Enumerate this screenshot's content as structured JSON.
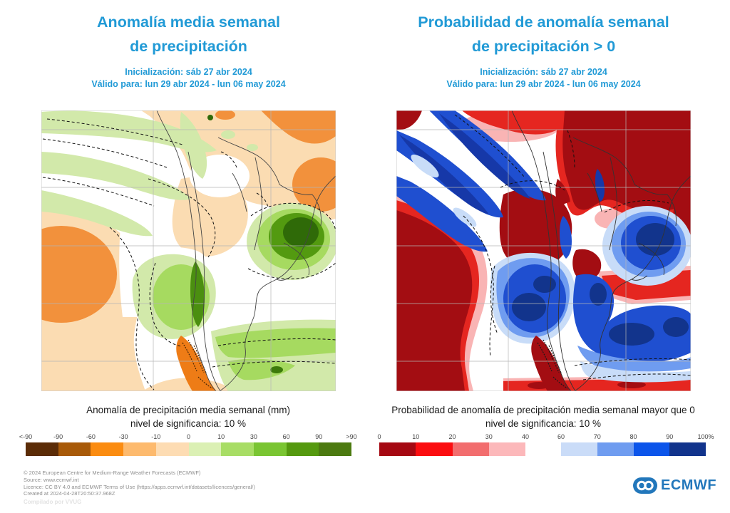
{
  "accent_blue": "#219ad6",
  "logo_blue": "#2277bb",
  "panels": [
    {
      "title_line1": "Anomalía media semanal",
      "title_line2": "de precipitación",
      "init_line": "Inicialización: sáb 27 abr 2024",
      "valid_line": "Válido para: lun 29 abr 2024 - lun 06 may 2024",
      "caption_line1": "Anomalía de precipitación media semanal (mm)",
      "caption_line2": "nivel de significancia: 10 %",
      "colorbars": [
        {
          "labels": [
            "<-90",
            "-90",
            "-60",
            "-30",
            "-10",
            "0",
            "10",
            "30",
            "60",
            "90",
            ">90"
          ],
          "colors": [
            "#5b2c07",
            "#a85a09",
            "#fb8c11",
            "#fdba6e",
            "#fddcb3",
            "#dbf0b4",
            "#a8dd65",
            "#7ac532",
            "#55990f",
            "#4c7a10"
          ]
        }
      ]
    },
    {
      "title_line1": "Probabilidad de anomalía semanal",
      "title_line2": "de precipitación > 0",
      "init_line": "Inicialización: sáb 27 abr 2024",
      "valid_line": "Válido para: lun 29 abr 2024 - lun 06 may 2024",
      "caption_line1": "Probabilidad de anomalía de precipitación media semanal mayor que 0",
      "caption_line2": "nivel de significancia: 10 %",
      "colorbars": [
        {
          "labels": [
            "0",
            "10",
            "20",
            "30",
            "40"
          ],
          "colors": [
            "#a50812",
            "#fb0d10",
            "#f26d6e",
            "#fcb8ba"
          ]
        },
        {
          "labels": [
            "60",
            "70",
            "80",
            "90",
            "100%"
          ],
          "colors": [
            "#cadcf8",
            "#6f9cf0",
            "#0c55ea",
            "#12348c"
          ]
        }
      ]
    }
  ],
  "footer": {
    "lines": [
      "© 2024 European Centre for Medium-Range Weather Forecasts (ECMWF)",
      "Source: www.ecmwf.int",
      "Licence: CC BY 4.0 and ECMWF Terms of Use (https://apps.ecmwf.int/datasets/licences/general/)",
      "Created at 2024-04-28T20:50:37.968Z"
    ],
    "watermark": "Compilado por VVUG"
  },
  "logo": {
    "text": "ECMWF"
  },
  "chart_data": [
    {
      "type": "heatmap",
      "title": "Anomalía media semanal de precipitación",
      "subtitle": [
        "Inicialización: sáb 27 abr 2024",
        "Válido para: lun 29 abr 2024 - lun 06 may 2024"
      ],
      "region": "southern South America with adjacent Pacific and Atlantic",
      "legend_label": "Anomalía de precipitación media semanal (mm)",
      "significance": "nivel de significancia: 10 %",
      "scale_ticks": [
        "<-90",
        "-90",
        "-60",
        "-30",
        "-10",
        "0",
        "10",
        "30",
        "60",
        "90",
        ">90"
      ],
      "scale_colors": [
        "#5b2c07",
        "#a85a09",
        "#fb8c11",
        "#fdba6e",
        "#fddcb3",
        "#dbf0b4",
        "#a8dd65",
        "#7ac532",
        "#55990f",
        "#4c7a10"
      ],
      "grid": true,
      "visual_features": [
        "dark green positive anomaly maximum over Uruguay / southern Brazil",
        "green positive band along central Chile and southern Argentina / Patagonia east",
        "orange negative anomalies over the tropical interior, subtropical Pacific and southwestern Patagonia",
        "light green diagonal bands over the southeast Pacific; dashed contours mark the 10% significance"
      ]
    },
    {
      "type": "heatmap",
      "title": "Probabilidad de anomalía semanal de precipitación > 0",
      "subtitle": [
        "Inicialización: sáb 27 abr 2024",
        "Válido para: lun 29 abr 2024 - lun 06 may 2024"
      ],
      "region": "southern South America with adjacent Pacific and Atlantic",
      "legend_label": "Probabilidad de anomalía de precipitación media semanal mayor que 0",
      "significance": "nivel de significancia: 10 %",
      "scale_ticks_low": [
        "0",
        "10",
        "20",
        "30",
        "40"
      ],
      "scale_colors_low": [
        "#a50812",
        "#fb0d10",
        "#f26d6e",
        "#fcb8ba"
      ],
      "scale_ticks_high": [
        "60",
        "70",
        "80",
        "90",
        "100%"
      ],
      "scale_colors_high": [
        "#cadcf8",
        "#6f9cf0",
        "#0c55ea",
        "#12348c"
      ],
      "grid": true,
      "visual_features": [
        "dark red (probability < 10%) over subtropical Pacific, tropical interior and southwestern Patagonia",
        "dark blue (probability > 90%) over Uruguay / southern Brazil, central Chile and Patagonia / southwest Atlantic",
        "alternating blue bands over the far southeast Pacific"
      ]
    }
  ]
}
